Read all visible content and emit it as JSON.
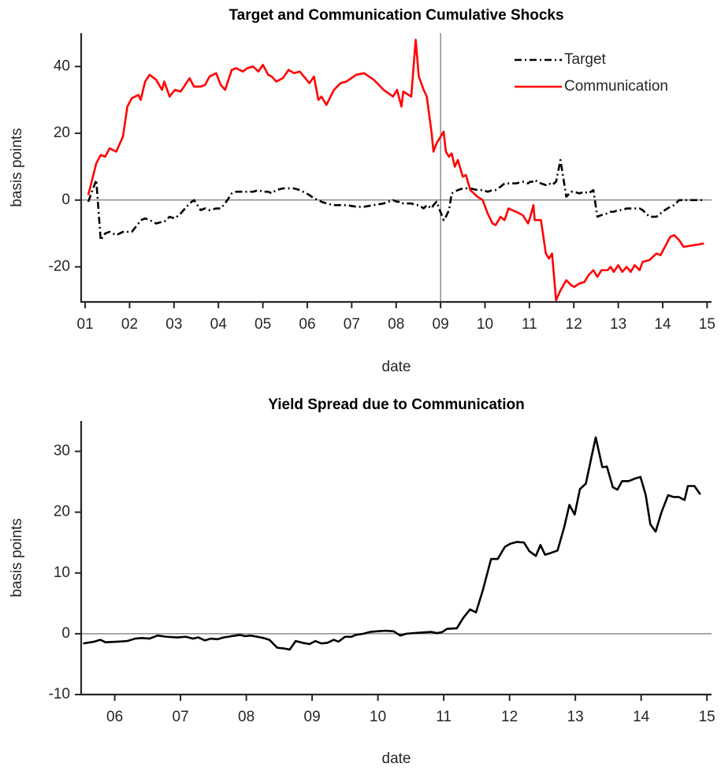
{
  "chart_data": [
    {
      "type": "line",
      "title": "Target and Communication Cumulative Shocks",
      "xlabel": "date",
      "ylabel": "basis points",
      "x": [
        1.07,
        1.25,
        1.35,
        1.45,
        1.55,
        1.7,
        1.85,
        1.95,
        2.05,
        2.2,
        2.25,
        2.35,
        2.45,
        2.6,
        2.73,
        2.78,
        2.9,
        3.02,
        3.15,
        3.35,
        3.45,
        3.6,
        3.7,
        3.8,
        3.95,
        4.05,
        4.15,
        4.3,
        4.4,
        4.55,
        4.65,
        4.78,
        4.9,
        5.0,
        5.12,
        5.2,
        5.3,
        5.45,
        5.58,
        5.7,
        5.83,
        6.05,
        6.15,
        6.25,
        6.32,
        6.43,
        6.6,
        6.75,
        6.88,
        7.1,
        7.28,
        7.5,
        7.72,
        7.93,
        8.02,
        8.12,
        8.16,
        8.34,
        8.44,
        8.51,
        8.62,
        8.69,
        8.8,
        8.84,
        8.91,
        9.07,
        9.12,
        9.19,
        9.25,
        9.32,
        9.39,
        9.5,
        9.57,
        9.67,
        9.83,
        9.95,
        10.06,
        10.17,
        10.24,
        10.35,
        10.44,
        10.53,
        10.7,
        10.85,
        10.97,
        11.02,
        11.09,
        11.12,
        11.26,
        11.37,
        11.44,
        11.51,
        11.6,
        11.7,
        11.83,
        11.94,
        12.01,
        12.12,
        12.24,
        12.33,
        12.44,
        12.53,
        12.62,
        12.76,
        12.83,
        12.9,
        13.0,
        13.09,
        13.19,
        13.28,
        13.37,
        13.48,
        13.55,
        13.7,
        13.86,
        13.95,
        14.05,
        14.17,
        14.26,
        14.37,
        14.47,
        14.7,
        14.93
      ],
      "series": [
        {
          "name": "Target",
          "color": "#000000",
          "dash": "dashdot",
          "values": [
            -0.5,
            6,
            -12,
            -10,
            -9.5,
            -10.5,
            -9.5,
            -9.5,
            -9.5,
            -7,
            -6,
            -5.5,
            -6,
            -7,
            -6.5,
            -6.5,
            -5,
            -5.5,
            -4,
            -1,
            0,
            -3,
            -2.5,
            -3,
            -2.5,
            -2.5,
            -1,
            2,
            2.5,
            2.5,
            2.5,
            2.5,
            3,
            2.5,
            2.5,
            2,
            3,
            3.5,
            3.5,
            3.5,
            3,
            1.5,
            0.5,
            0,
            -0.5,
            -1,
            -1.5,
            -1.5,
            -1.5,
            -2,
            -2,
            -1.5,
            -1,
            0,
            -0.5,
            -0.5,
            -1,
            -1,
            -1.5,
            -1.5,
            -2.5,
            -1.5,
            -2.5,
            -1.5,
            -0.5,
            -6,
            -5,
            -3,
            2,
            2.5,
            3,
            3.5,
            3.5,
            3.5,
            3,
            3,
            2.5,
            3,
            3,
            4,
            5,
            5,
            5,
            5.5,
            5,
            5.5,
            5.5,
            6,
            5,
            4.5,
            5,
            4.5,
            5.5,
            12,
            1,
            2.5,
            2.5,
            2,
            2.5,
            2,
            3,
            -5,
            -4.5,
            -4,
            -3.5,
            -3.5,
            -3,
            -3,
            -2.5,
            -2.5,
            -2.5,
            -2.5,
            -3,
            -5,
            -5,
            -4,
            -3,
            -2,
            -1.5,
            0,
            0,
            0,
            0
          ]
        },
        {
          "name": "Communication",
          "color": "#ff0000",
          "dash": "solid",
          "values": [
            1.5,
            11,
            13.5,
            13,
            15.5,
            14.5,
            19,
            28,
            30.5,
            31.5,
            30,
            35.5,
            37.5,
            36,
            33,
            35.5,
            31,
            33,
            32.5,
            36.5,
            34,
            34,
            34.5,
            37,
            38,
            34.5,
            33,
            39,
            39.5,
            38.5,
            39.5,
            40,
            38.5,
            40.5,
            37.5,
            37,
            35.5,
            36.5,
            39,
            38,
            38.5,
            35,
            37,
            30,
            31,
            28.5,
            33,
            35,
            35.5,
            37.5,
            38,
            36,
            33,
            31,
            33,
            28,
            32.5,
            31,
            48,
            37,
            33,
            31,
            20,
            14.5,
            17,
            20.5,
            14.5,
            13,
            14,
            10,
            12,
            7,
            7.5,
            3,
            1,
            0,
            -4,
            -7,
            -7.5,
            -5,
            -6,
            -2.5,
            -3.5,
            -4.5,
            -7,
            -5,
            -1.5,
            -6,
            -6,
            -16,
            -17.5,
            -16,
            -30,
            -27,
            -24,
            -25.5,
            -26,
            -25,
            -24.5,
            -22.5,
            -21,
            -23,
            -21,
            -21,
            -20,
            -21.5,
            -19.5,
            -21.5,
            -20,
            -21.5,
            -19.5,
            -21,
            -18.5,
            -18,
            -16,
            -16.5,
            -14,
            -11,
            -10.5,
            -12,
            -14,
            -13.5,
            -13
          ]
        }
      ],
      "xlim": [
        0.91,
        15.1
      ],
      "xticks": [
        {
          "value": 1,
          "label": "01"
        },
        {
          "value": 2,
          "label": "02"
        },
        {
          "value": 3,
          "label": "03"
        },
        {
          "value": 4,
          "label": "04"
        },
        {
          "value": 5,
          "label": "05"
        },
        {
          "value": 6,
          "label": "06"
        },
        {
          "value": 7,
          "label": "07"
        },
        {
          "value": 8,
          "label": "08"
        },
        {
          "value": 9,
          "label": "09"
        },
        10,
        11,
        12,
        13,
        14,
        15
      ],
      "ylim": [
        -30.5,
        50
      ],
      "yticks": [
        -20,
        0,
        20,
        40
      ],
      "hlines": [
        0
      ],
      "vlines": [
        9
      ],
      "legend": "upper right"
    },
    {
      "type": "line",
      "title": "Yield Spread due to Communication",
      "xlabel": "date",
      "ylabel": "basis points",
      "x": [
        5.52,
        5.69,
        5.78,
        5.86,
        6.05,
        6.19,
        6.31,
        6.41,
        6.53,
        6.65,
        6.79,
        6.95,
        7.08,
        7.19,
        7.27,
        7.37,
        7.46,
        7.56,
        7.66,
        7.78,
        7.9,
        7.99,
        8.06,
        8.17,
        8.26,
        8.35,
        8.47,
        8.56,
        8.66,
        8.75,
        8.86,
        8.96,
        9.05,
        9.14,
        9.23,
        9.33,
        9.4,
        9.5,
        9.6,
        9.66,
        9.78,
        9.88,
        9.98,
        10.12,
        10.24,
        10.34,
        10.43,
        10.54,
        10.67,
        10.81,
        10.9,
        10.98,
        11.05,
        11.2,
        11.29,
        11.4,
        11.49,
        11.59,
        11.72,
        11.82,
        11.93,
        12.01,
        12.11,
        12.22,
        12.3,
        12.4,
        12.47,
        12.54,
        12.63,
        12.73,
        12.83,
        12.91,
        12.99,
        13.07,
        13.16,
        13.25,
        13.31,
        13.41,
        13.48,
        13.57,
        13.64,
        13.71,
        13.81,
        13.9,
        13.99,
        14.07,
        14.14,
        14.22,
        14.31,
        14.41,
        14.49,
        14.57,
        14.66,
        14.71,
        14.81,
        14.9
      ],
      "color": "#000000",
      "values": [
        -1.6,
        -1.3,
        -1.0,
        -1.4,
        -1.3,
        -1.2,
        -0.8,
        -0.7,
        -0.8,
        -0.3,
        -0.5,
        -0.6,
        -0.5,
        -0.8,
        -0.6,
        -1.1,
        -0.8,
        -0.9,
        -0.6,
        -0.4,
        -0.2,
        -0.4,
        -0.3,
        -0.5,
        -0.7,
        -1.0,
        -2.3,
        -2.4,
        -2.6,
        -1.2,
        -1.5,
        -1.7,
        -1.2,
        -1.6,
        -1.5,
        -1.0,
        -1.3,
        -0.5,
        -0.5,
        -0.2,
        0,
        0.3,
        0.4,
        0.5,
        0.4,
        -0.3,
        0,
        0.1,
        0.2,
        0.3,
        0.1,
        0.3,
        0.8,
        0.9,
        2.5,
        4,
        3.5,
        7,
        12.3,
        12.3,
        14.3,
        14.8,
        15.1,
        15,
        13.6,
        12.8,
        14.6,
        13,
        13.3,
        13.7,
        17.5,
        21.2,
        19.6,
        23.8,
        24.7,
        29.3,
        32.3,
        27.4,
        27.5,
        24.1,
        23.7,
        25.1,
        25.1,
        25.5,
        25.8,
        22.8,
        18,
        16.8,
        20,
        22.8,
        22.5,
        22.5,
        22,
        24.3,
        24.3,
        22.9
      ],
      "xlim": [
        5.49,
        15.07
      ],
      "xticks": [
        {
          "value": 6,
          "label": "06"
        },
        {
          "value": 7,
          "label": "07"
        },
        {
          "value": 8,
          "label": "08"
        },
        {
          "value": 9,
          "label": "09"
        },
        10,
        11,
        12,
        13,
        14,
        15
      ],
      "ylim": [
        -10,
        35
      ],
      "yticks": [
        -10,
        0,
        10,
        20,
        30
      ],
      "hlines": [
        0
      ]
    }
  ]
}
